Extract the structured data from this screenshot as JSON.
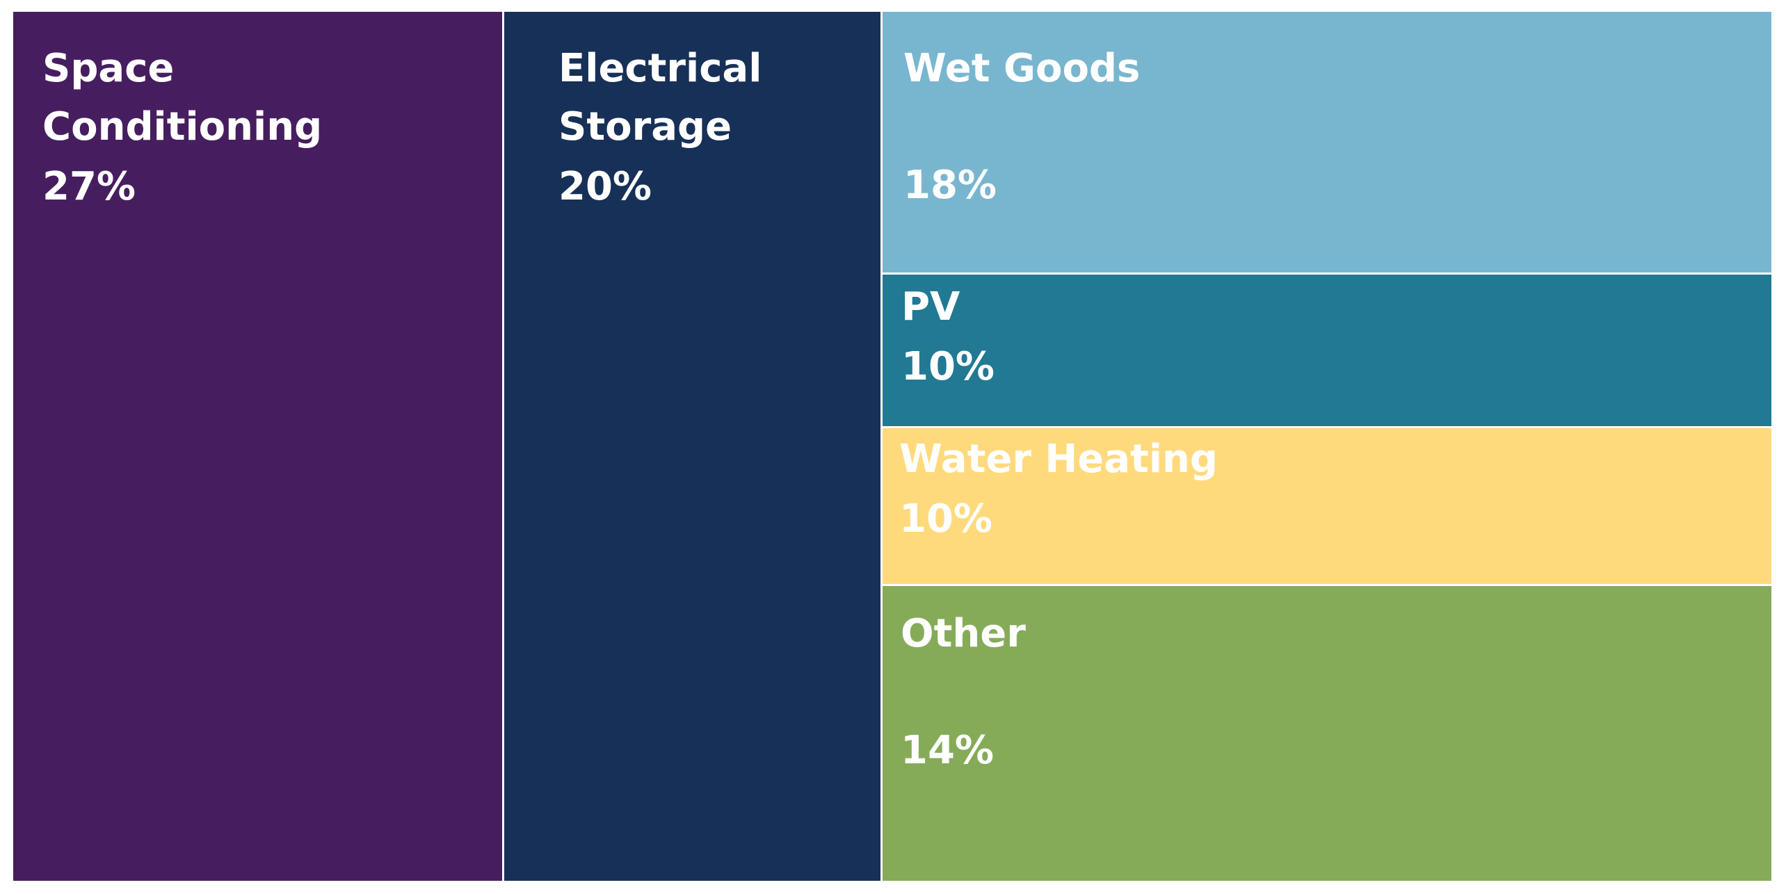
{
  "chart_data": {
    "type": "treemap",
    "title": "",
    "items": [
      {
        "name": "Space\nConditioning",
        "value": 27,
        "label": "27%",
        "color": "#461e5f"
      },
      {
        "name": "Electrical\nStorage",
        "value": 20,
        "label": "20%",
        "color": "#173057"
      },
      {
        "name": "Wet Goods",
        "value": 18,
        "label": "18%",
        "color": "#78b6cf"
      },
      {
        "name": "PV",
        "value": 10,
        "label": "10%",
        "color": "#217993"
      },
      {
        "name": "Water Heating",
        "value": 10,
        "label": "10%",
        "color": "#ffda7d"
      },
      {
        "name": "Other",
        "value": 14,
        "label": "14%",
        "color": "#85ab58"
      }
    ]
  }
}
